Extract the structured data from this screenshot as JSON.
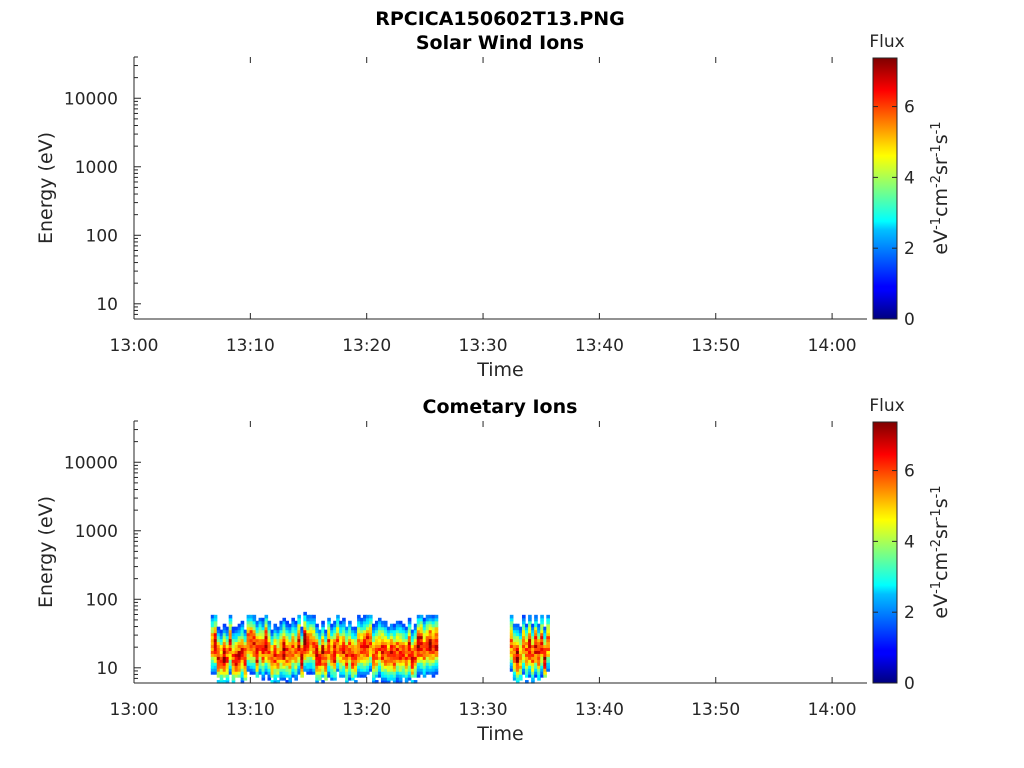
{
  "figure": {
    "title": "RPCICA150602T13.PNG"
  },
  "chart_data": [
    {
      "type": "heatmap",
      "title": "Solar Wind Ions",
      "xlabel": "Time",
      "ylabel": "Energy (eV)",
      "x_ticks": [
        "13:00",
        "13:10",
        "13:20",
        "13:30",
        "13:40",
        "13:50",
        "14:00"
      ],
      "x_range_minutes": [
        0,
        63
      ],
      "y_scale": "log",
      "y_ticks": [
        {
          "value": 10,
          "label": "10"
        },
        {
          "value": 100,
          "label": "100"
        },
        {
          "value": 1000,
          "label": "1000"
        },
        {
          "value": 10000,
          "label": "10000"
        }
      ],
      "y_range": [
        6,
        40000
      ],
      "colorbar": {
        "title": "Flux",
        "units": "eV-1cm-2sr-1s-1",
        "ticks": [
          "0",
          "2",
          "4",
          "6"
        ],
        "range": [
          0,
          7.4
        ],
        "colormap": "jet"
      },
      "blocks": []
    },
    {
      "type": "heatmap",
      "title": "Cometary Ions",
      "xlabel": "Time",
      "ylabel": "Energy (eV)",
      "x_ticks": [
        "13:00",
        "13:10",
        "13:20",
        "13:30",
        "13:40",
        "13:50",
        "14:00"
      ],
      "x_range_minutes": [
        0,
        63
      ],
      "y_scale": "log",
      "y_ticks": [
        {
          "value": 10,
          "label": "10"
        },
        {
          "value": 100,
          "label": "100"
        },
        {
          "value": 1000,
          "label": "1000"
        },
        {
          "value": 10000,
          "label": "10000"
        }
      ],
      "y_range": [
        6,
        40000
      ],
      "colorbar": {
        "title": "Flux",
        "units": "eV-1cm-2sr-1s-1",
        "ticks": [
          "0",
          "2",
          "4",
          "6"
        ],
        "range": [
          0,
          7.4
        ],
        "colormap": "jet"
      },
      "blocks": [
        {
          "t_start_min": 6.6,
          "t_end_min": 26.1,
          "e_min": 6,
          "e_max": 80,
          "peak_flux": 7.2
        },
        {
          "t_start_min": 32.3,
          "t_end_min": 35.7,
          "e_min": 6,
          "e_max": 80,
          "peak_flux": 7.2
        }
      ]
    }
  ]
}
